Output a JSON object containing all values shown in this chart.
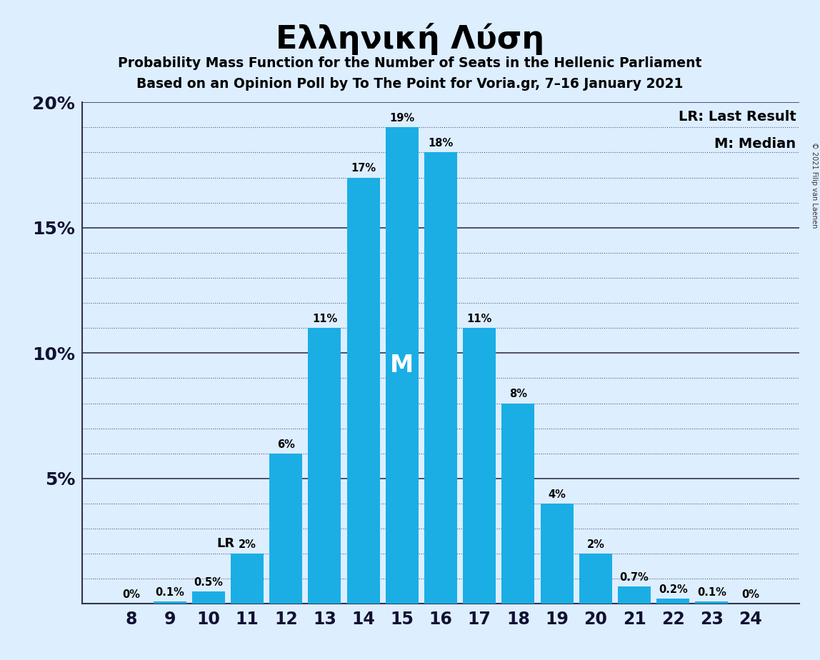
{
  "title": "Ελληνική Λύση",
  "subtitle1": "Probability Mass Function for the Number of Seats in the Hellenic Parliament",
  "subtitle2": "Based on an Opinion Poll by To The Point for Voria.gr, 7–16 January 2021",
  "categories": [
    8,
    9,
    10,
    11,
    12,
    13,
    14,
    15,
    16,
    17,
    18,
    19,
    20,
    21,
    22,
    23,
    24
  ],
  "values": [
    0.0,
    0.1,
    0.5,
    2.0,
    6.0,
    11.0,
    17.0,
    19.0,
    18.0,
    11.0,
    8.0,
    4.0,
    2.0,
    0.7,
    0.2,
    0.1,
    0.0
  ],
  "labels": [
    "0%",
    "0.1%",
    "0.5%",
    "2%",
    "6%",
    "11%",
    "17%",
    "19%",
    "18%",
    "11%",
    "8%",
    "4%",
    "2%",
    "0.7%",
    "0.2%",
    "0.1%",
    "0%"
  ],
  "bar_color": "#1aaee5",
  "background_color": "#ddeeff",
  "median_seat": 15,
  "lr_seat": 11,
  "legend_lr": "LR: Last Result",
  "legend_m": "M: Median",
  "copyright": "© 2021 Filip van Laenen",
  "ylim": [
    0,
    20
  ],
  "ytick_major": [
    0,
    5,
    10,
    15,
    20
  ],
  "ytick_minor": [
    1,
    2,
    3,
    4,
    6,
    7,
    8,
    9,
    11,
    12,
    13,
    14,
    16,
    17,
    18,
    19
  ],
  "ytick_labels": [
    "",
    "5%",
    "10%",
    "15%",
    "20%"
  ]
}
